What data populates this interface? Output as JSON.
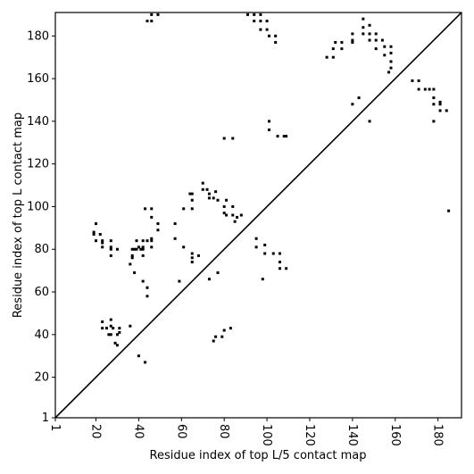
{
  "chart_data": {
    "type": "scatter",
    "x_label": "Residue index of top L/5 contact map",
    "y_label": "Residue index of top L contact map",
    "color": "#000000",
    "xlim": [
      1,
      191
    ],
    "ylim": [
      1,
      191
    ],
    "xticks": [
      1,
      20,
      40,
      60,
      80,
      100,
      120,
      140,
      160,
      180
    ],
    "yticks": [
      1,
      20,
      40,
      60,
      80,
      100,
      120,
      140,
      160,
      180
    ],
    "x": [
      19,
      19,
      20,
      20,
      22,
      23,
      23,
      23,
      27,
      27,
      27,
      27,
      30,
      36,
      37,
      37,
      37,
      38,
      38,
      39,
      39,
      40,
      41,
      42,
      42,
      42,
      42,
      43,
      44,
      46,
      46,
      46,
      46,
      46,
      49,
      49,
      42,
      44,
      44,
      57,
      57,
      59,
      61,
      61,
      64,
      65,
      65,
      65,
      65,
      65,
      65,
      68,
      70,
      70,
      72,
      73,
      73,
      76,
      75,
      77,
      77,
      80,
      80,
      81,
      81,
      84,
      84,
      85,
      86,
      88,
      73,
      75,
      76,
      79,
      80,
      83,
      95,
      95,
      99,
      99,
      98,
      103,
      106,
      106,
      106,
      109,
      23,
      23,
      25,
      26,
      27,
      27,
      27,
      28,
      29,
      30,
      30,
      31,
      31,
      36,
      40,
      43,
      185,
      44,
      46,
      46,
      49,
      91,
      94,
      94,
      97,
      97,
      97,
      100,
      100,
      101,
      104,
      104,
      101,
      101,
      105,
      108,
      109,
      80,
      84,
      128,
      131,
      131,
      132,
      135,
      135,
      140,
      140,
      140,
      140,
      143,
      145,
      145,
      145,
      148,
      148,
      148,
      151,
      151,
      151,
      154,
      155,
      155,
      158,
      158,
      158,
      158,
      157,
      148,
      168,
      171,
      171,
      174,
      176,
      178,
      178,
      178,
      178,
      181,
      181,
      181,
      184
    ],
    "values": [
      87,
      88,
      92,
      84,
      87,
      84,
      83,
      81,
      84,
      81,
      80,
      77,
      80,
      73,
      76,
      77,
      80,
      80,
      69,
      80,
      84,
      81,
      80,
      80,
      81,
      84,
      77,
      99,
      84,
      85,
      84,
      81,
      95,
      99,
      92,
      89,
      65,
      62,
      58,
      92,
      85,
      65,
      99,
      81,
      106,
      106,
      103,
      99,
      78,
      76,
      74,
      77,
      111,
      108,
      108,
      106,
      104,
      107,
      104,
      103,
      69,
      100,
      97,
      103,
      96,
      96,
      100,
      93,
      95,
      96,
      66,
      37,
      39,
      39,
      42,
      43,
      85,
      81,
      82,
      78,
      66,
      78,
      78,
      74,
      71,
      71,
      46,
      43,
      43,
      40,
      40,
      44,
      47,
      43,
      36,
      35,
      40,
      41,
      43,
      44,
      30,
      27,
      98,
      187,
      190,
      187,
      190,
      190,
      190,
      187,
      190,
      187,
      183,
      183,
      187,
      180,
      180,
      177,
      140,
      136,
      133,
      133,
      133,
      132,
      132,
      170,
      170,
      174,
      177,
      177,
      174,
      178,
      181,
      177,
      148,
      151,
      184,
      188,
      181,
      185,
      181,
      178,
      181,
      178,
      174,
      178,
      175,
      171,
      175,
      172,
      168,
      165,
      163,
      140,
      159,
      159,
      155,
      155,
      155,
      155,
      151,
      148,
      140,
      149,
      148,
      145,
      145
    ]
  }
}
